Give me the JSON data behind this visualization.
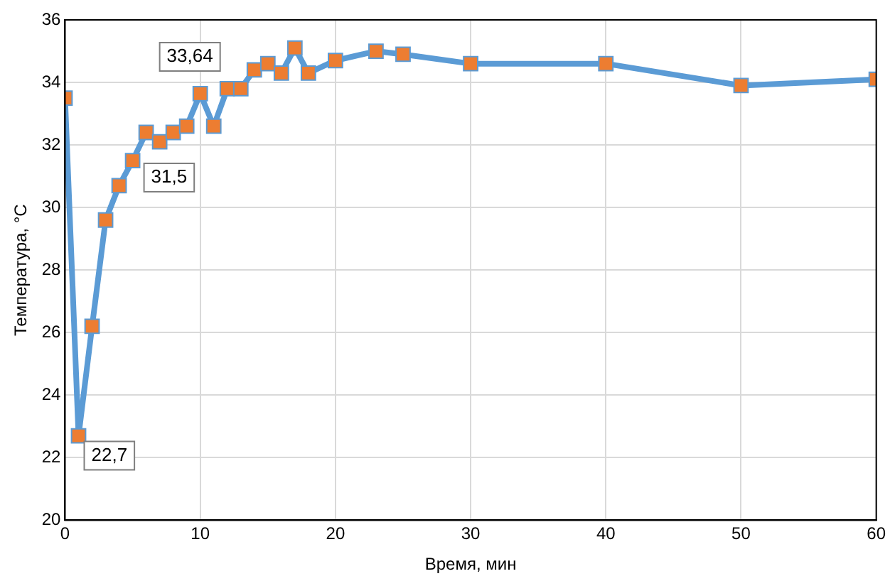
{
  "chart_data": {
    "type": "line",
    "xlabel": "Время, мин",
    "ylabel": "Температура, °C",
    "x": [
      0,
      1,
      2,
      3,
      4,
      5,
      6,
      7,
      8,
      9,
      10,
      11,
      12,
      13,
      14,
      15,
      16,
      17,
      18,
      20,
      23,
      25,
      30,
      40,
      50,
      60
    ],
    "series": [
      {
        "color": "#5b9bd5",
        "colors": [
          "#ed7d31",
          "#ed7d31",
          "#ed7d31",
          "#ed7d31",
          "#ed7d31",
          "#ed7d31",
          "#ed7d31",
          "#ed7d31",
          "#ed7d31",
          "#ed7d31",
          "#ed7d31",
          "#ed7d31",
          "#ed7d31",
          "#ed7d31",
          "#ed7d31",
          "#ed7d31",
          "#ed7d31",
          "#ed7d31",
          "#ed7d31",
          "#ed7d31",
          "#ed7d31",
          "#ed7d31",
          "#ed7d31",
          "#ed7d31",
          "#ed7d31",
          "#ed7d31"
        ],
        "values": [
          33.5,
          22.7,
          26.2,
          29.6,
          30.7,
          31.5,
          32.4,
          32.1,
          32.4,
          32.6,
          33.64,
          32.6,
          33.8,
          33.8,
          34.4,
          34.6,
          34.3,
          35.1,
          34.3,
          34.7,
          35.0,
          34.9,
          34.6,
          34.6,
          33.9,
          34.1
        ]
      }
    ],
    "xlim": [
      0,
      60
    ],
    "xticks": [
      0,
      10,
      20,
      30,
      40,
      50,
      60
    ],
    "ylim": [
      20,
      36
    ],
    "yticks": [
      20,
      22,
      24,
      26,
      28,
      30,
      32,
      34,
      36
    ],
    "grid": true,
    "legend": false,
    "marker": "square",
    "line_style": "solid",
    "annotations": [
      {
        "text": "33,64",
        "x": 10,
        "y": 33.64
      },
      {
        "text": "31,5",
        "x": 5,
        "y": 31.5
      },
      {
        "text": "22,7",
        "x": 1,
        "y": 22.7
      }
    ]
  }
}
